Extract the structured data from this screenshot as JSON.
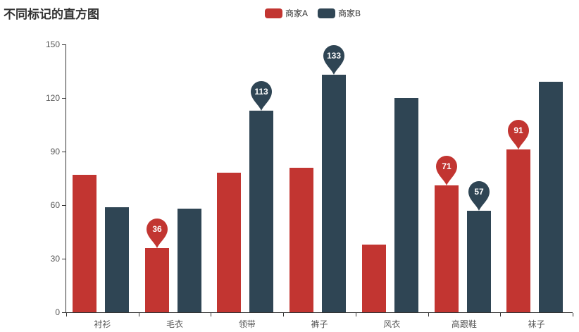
{
  "title": "不同标记的直方图",
  "legend": {
    "items": [
      {
        "label": "商家A",
        "color": "#c23531"
      },
      {
        "label": "商家B",
        "color": "#2f4554"
      }
    ]
  },
  "chart_data": {
    "type": "bar",
    "title": "不同标记的直方图",
    "categories": [
      "衬衫",
      "毛衣",
      "领带",
      "裤子",
      "风衣",
      "高跟鞋",
      "袜子"
    ],
    "series": [
      {
        "name": "商家A",
        "color": "#c23531",
        "values": [
          77,
          36,
          78,
          81,
          38,
          71,
          91
        ],
        "mark_points": [
          {
            "category_index": 1,
            "value": 36
          },
          {
            "category_index": 5,
            "value": 71
          },
          {
            "category_index": 6,
            "value": 91
          }
        ]
      },
      {
        "name": "商家B",
        "color": "#2f4554",
        "values": [
          59,
          58,
          113,
          133,
          120,
          57,
          129
        ],
        "mark_points": [
          {
            "category_index": 2,
            "value": 113
          },
          {
            "category_index": 3,
            "value": 133
          },
          {
            "category_index": 5,
            "value": 57
          }
        ]
      }
    ],
    "xlabel": "",
    "ylabel": "",
    "ylim": [
      0,
      150
    ],
    "yticks": [
      0,
      30,
      60,
      90,
      120,
      150
    ],
    "grid": false,
    "legend_position": "top-center",
    "axis_color": "#333333",
    "background_color": "#ffffff"
  }
}
